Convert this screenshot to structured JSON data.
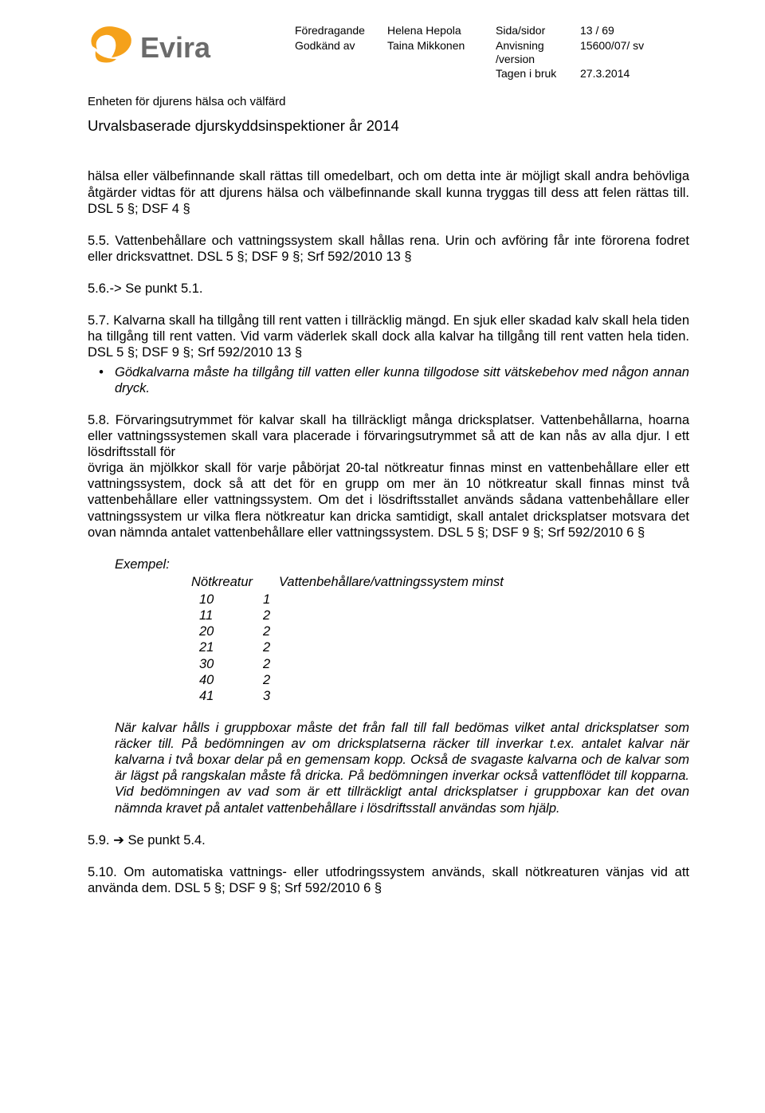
{
  "colors": {
    "logo_swoosh": "#f5a11a",
    "logo_text": "#6b6b6b",
    "body_text": "#000000",
    "background": "#ffffff"
  },
  "typography": {
    "body_fontsize_pt": 12,
    "title_fontsize_pt": 14,
    "meta_fontsize_pt": 10,
    "font_family": "Arial"
  },
  "header": {
    "logo_text": "Evira",
    "meta_labels": {
      "foredragande": "Föredragande",
      "godkand": "Godkänd av",
      "sida": "Sida/sidor",
      "anvisning": "Anvisning /version",
      "tagen": "Tagen i bruk"
    },
    "meta_values": {
      "foredragande": "Helena Hepola",
      "godkand": "Taina Mikkonen",
      "sida": "13 / 69",
      "anvisning": "15600/07/ sv",
      "tagen": "27.3.2014"
    },
    "unit": "Enheten för djurens hälsa och välfärd",
    "title": "Urvalsbaserade djurskyddsinspektioner år 2014"
  },
  "body": {
    "p_cont": "hälsa eller välbefinnande skall rättas till omedelbart, och om detta inte är möjligt skall andra behövliga åtgärder vidtas för att djurens hälsa och välbefinnande skall kunna tryggas till dess att felen rättas till. DSL 5 §; DSF 4 §",
    "p55": "5.5. Vattenbehållare och vattningssystem skall hållas rena. Urin och avföring får inte förorena fodret eller dricksvattnet. DSL 5 §; DSF 9 §; Srf 592/2010 13 §",
    "p56": "5.6.-> Se punkt 5.1.",
    "p57": "5.7. Kalvarna skall ha tillgång till rent vatten i tillräcklig mängd. En sjuk eller skadad kalv skall hela tiden ha tillgång till rent vatten. Vid varm väderlek skall dock alla kalvar ha tillgång till rent vatten hela tiden. DSL 5 §; DSF 9 §; Srf 592/2010 13 §",
    "p57_bullet": "Gödkalvarna måste ha tillgång till vatten eller kunna tillgodose sitt vätskebehov med någon annan dryck.",
    "p58": "5.8. Förvaringsutrymmet för kalvar skall ha tillräckligt många dricksplatser. Vattenbehållarna, hoarna eller vattningssystemen skall vara placerade i förvaringsutrymmet så att de kan nås av alla djur. I ett lösdriftsstall för",
    "p58b": "övriga än mjölkkor skall för varje påbörjat 20-tal nötkreatur finnas minst en vattenbehållare eller ett vattningssystem, dock så att det för en grupp om mer än 10 nötkreatur skall finnas minst två vattenbehållare eller vattningssystem. Om det i lösdriftsstallet används sådana vattenbehållare eller vattningssystem ur vilka flera nötkreatur kan dricka samtidigt, skall antalet dricksplatser motsvara det ovan nämnda antalet vattenbehållare eller vattningssystem. DSL 5 §; DSF 9 §; Srf 592/2010 6 §",
    "example_label": "Exempel:",
    "table": {
      "columns": [
        "Nötkreatur",
        "Vattenbehållare/vattningssystem minst"
      ],
      "rows": [
        [
          "10",
          "1"
        ],
        [
          "11",
          "2"
        ],
        [
          "20",
          "2"
        ],
        [
          "21",
          "2"
        ],
        [
          "30",
          "2"
        ],
        [
          "40",
          "2"
        ],
        [
          "41",
          "3"
        ]
      ]
    },
    "italic_para": "När kalvar hålls i gruppboxar måste det från fall till fall bedömas vilket antal dricksplatser som räcker till. På bedömningen av om dricksplatserna räcker till inverkar t.ex. antalet kalvar när kalvarna i två boxar delar på en gemensam kopp. Också de svagaste kalvarna och de kalvar som är lägst på rangskalan måste få dricka. På bedömningen inverkar också vattenflödet till kopparna. Vid bedömningen av vad som är ett tillräckligt antal dricksplatser i gruppboxar kan det ovan nämnda kravet på antalet vattenbehållare i lösdriftsstall användas som hjälp.",
    "p59_pre": "5.9. ",
    "p59_arrow": "➔",
    "p59_post": " Se punkt 5.4.",
    "p510": "5.10. Om automatiska vattnings- eller utfodringssystem används, skall nötkreaturen vänjas vid att använda dem. DSL 5 §; DSF 9 §; Srf 592/2010 6 §"
  }
}
